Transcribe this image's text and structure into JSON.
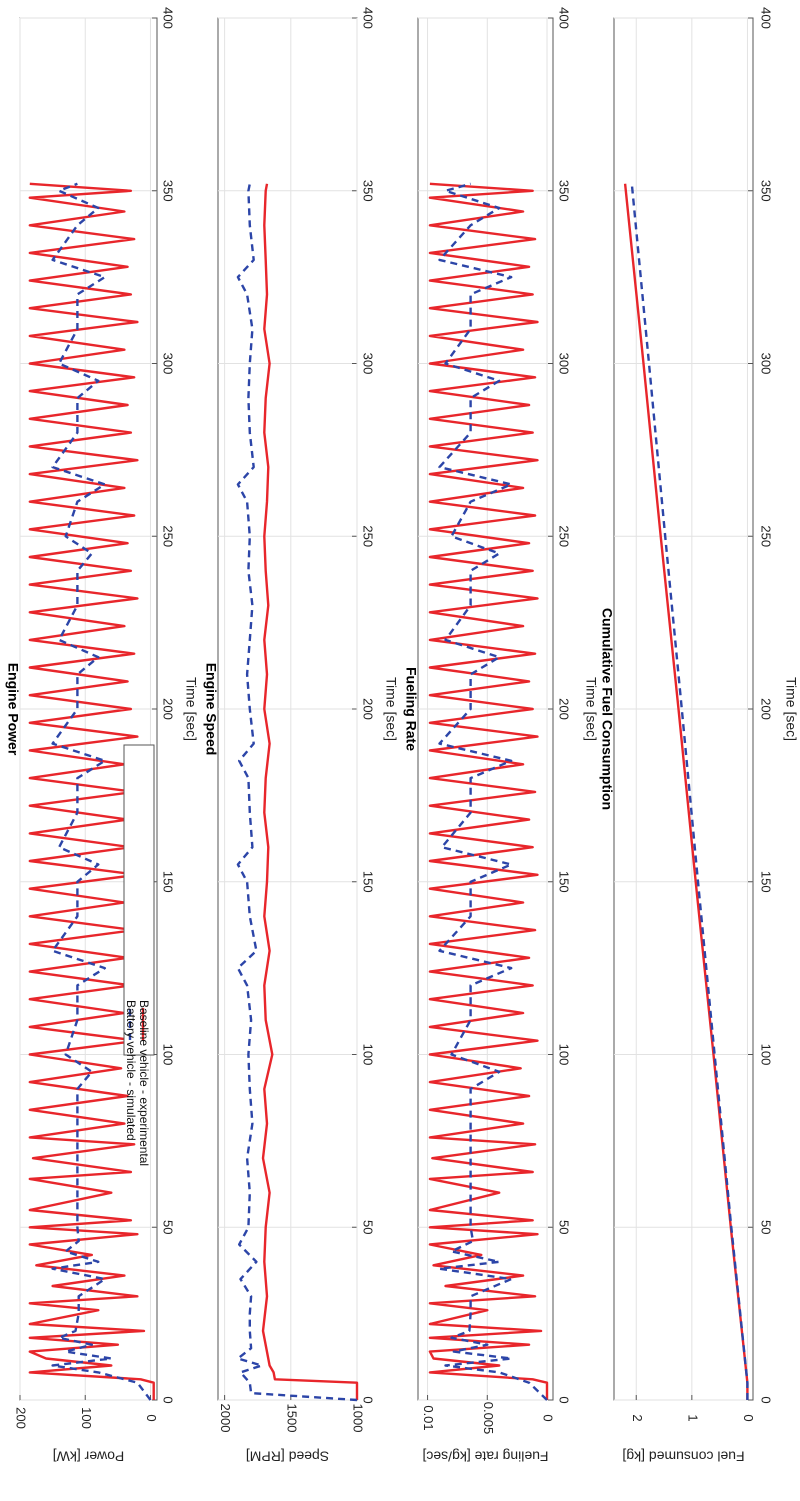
{
  "figure_orientation": "rotated 90 degrees clockwise",
  "colors": {
    "baseline": "#e8262b",
    "battery": "#2c45a8",
    "grid": "#e2e2e2",
    "axis": "#555555"
  },
  "legend": {
    "entries": [
      "Baseline vehicle - experimental",
      "Battery vehicle - simulated"
    ],
    "placement": "top-right"
  },
  "chart_data": [
    {
      "type": "line",
      "title": "Engine Power",
      "xlabel": "Time [sec]",
      "ylabel": "Power [kW]",
      "xlim": [
        0,
        400
      ],
      "ylim": [
        -10,
        200
      ],
      "xticks": [
        "0",
        "50",
        "100",
        "150",
        "200",
        "250",
        "300",
        "350",
        "400"
      ],
      "yticks": [
        "0",
        "100",
        "200"
      ],
      "grid": true,
      "series": [
        {
          "name": "Baseline vehicle - experimental",
          "style": "solid",
          "color": "#e8262b",
          "x": [
            0,
            5,
            6,
            8,
            10,
            12,
            14,
            16,
            18,
            20,
            22,
            26,
            28,
            30,
            33,
            36,
            39,
            42,
            45,
            48,
            50,
            52,
            55,
            60,
            64,
            66,
            70,
            74,
            76,
            80,
            84,
            88,
            92,
            96,
            100,
            104,
            108,
            112,
            116,
            120,
            124,
            128,
            132,
            136,
            140,
            144,
            148,
            152,
            156,
            160,
            164,
            168,
            172,
            176,
            180,
            184,
            188,
            192,
            196,
            200,
            204,
            208,
            212,
            216,
            220,
            224,
            228,
            232,
            236,
            240,
            244,
            248,
            252,
            256,
            260,
            264,
            268,
            272,
            276,
            280,
            284,
            288,
            292,
            296,
            300,
            304,
            308,
            312,
            316,
            320,
            324,
            328,
            332,
            336,
            340,
            344,
            348,
            350,
            352
          ],
          "y": [
            -5,
            -5,
            15,
            185,
            60,
            160,
            185,
            50,
            185,
            10,
            185,
            80,
            185,
            20,
            150,
            40,
            175,
            90,
            185,
            20,
            185,
            30,
            185,
            60,
            185,
            30,
            180,
            25,
            185,
            40,
            185,
            35,
            185,
            45,
            185,
            20,
            185,
            40,
            185,
            30,
            185,
            35,
            185,
            25,
            185,
            40,
            185,
            20,
            185,
            30,
            185,
            35,
            185,
            25,
            185,
            40,
            185,
            20,
            185,
            30,
            185,
            35,
            185,
            25,
            185,
            40,
            185,
            20,
            185,
            30,
            185,
            35,
            185,
            25,
            185,
            40,
            185,
            20,
            185,
            30,
            185,
            35,
            185,
            25,
            185,
            40,
            185,
            20,
            185,
            30,
            185,
            35,
            185,
            25,
            185,
            40,
            185,
            30,
            185
          ]
        },
        {
          "name": "Battery vehicle - simulated",
          "style": "dashed",
          "color": "#2c45a8",
          "x": [
            0,
            5,
            8,
            10,
            12,
            14,
            16,
            18,
            20,
            25,
            30,
            35,
            38,
            40,
            43,
            46,
            50,
            60,
            70,
            80,
            90,
            95,
            100,
            110,
            120,
            125,
            130,
            140,
            150,
            155,
            160,
            170,
            180,
            185,
            190,
            200,
            210,
            215,
            220,
            230,
            240,
            245,
            250,
            260,
            265,
            270,
            280,
            290,
            295,
            300,
            310,
            320,
            325,
            330,
            340,
            345,
            350,
            352
          ],
          "y": [
            0,
            20,
            80,
            150,
            60,
            130,
            90,
            140,
            115,
            110,
            110,
            70,
            150,
            80,
            130,
            110,
            112,
            112,
            112,
            112,
            112,
            90,
            130,
            112,
            112,
            70,
            150,
            112,
            112,
            80,
            140,
            112,
            112,
            70,
            150,
            112,
            112,
            80,
            140,
            112,
            112,
            90,
            130,
            112,
            70,
            150,
            112,
            112,
            80,
            140,
            112,
            112,
            70,
            150,
            112,
            80,
            140,
            112
          ]
        }
      ]
    },
    {
      "type": "line",
      "title": "Engine Speed",
      "xlabel": "Time [sec]",
      "ylabel": "Speed [RPM]",
      "xlim": [
        0,
        400
      ],
      "ylim": [
        1000,
        2050
      ],
      "xticks": [
        "0",
        "50",
        "100",
        "150",
        "200",
        "250",
        "300",
        "350",
        "400"
      ],
      "yticks": [
        "1000",
        "1500",
        "2000"
      ],
      "grid": true,
      "series": [
        {
          "name": "Baseline vehicle - experimental",
          "style": "solid",
          "color": "#e8262b",
          "x": [
            0,
            5,
            6,
            8,
            10,
            20,
            30,
            40,
            50,
            60,
            70,
            80,
            90,
            100,
            110,
            120,
            130,
            140,
            150,
            160,
            170,
            180,
            190,
            200,
            210,
            220,
            230,
            240,
            250,
            260,
            270,
            280,
            290,
            300,
            310,
            320,
            330,
            340,
            350,
            352
          ],
          "y": [
            1000,
            1000,
            1620,
            1630,
            1660,
            1710,
            1680,
            1700,
            1690,
            1660,
            1710,
            1680,
            1700,
            1640,
            1690,
            1700,
            1660,
            1700,
            1680,
            1670,
            1700,
            1690,
            1660,
            1700,
            1680,
            1700,
            1670,
            1690,
            1700,
            1680,
            1670,
            1700,
            1690,
            1660,
            1700,
            1680,
            1690,
            1700,
            1690,
            1680
          ]
        },
        {
          "name": "Battery vehicle - simulated",
          "style": "dashed",
          "color": "#2c45a8",
          "x": [
            0,
            2,
            5,
            8,
            10,
            12,
            15,
            20,
            25,
            30,
            35,
            40,
            45,
            50,
            60,
            70,
            80,
            90,
            100,
            110,
            120,
            125,
            130,
            140,
            150,
            155,
            160,
            170,
            180,
            185,
            190,
            200,
            210,
            220,
            230,
            240,
            250,
            260,
            265,
            270,
            280,
            290,
            300,
            310,
            320,
            325,
            330,
            340,
            350,
            352
          ],
          "y": [
            1000,
            1800,
            1810,
            1880,
            1720,
            1900,
            1800,
            1810,
            1810,
            1800,
            1880,
            1760,
            1890,
            1820,
            1810,
            1830,
            1790,
            1810,
            1820,
            1800,
            1830,
            1900,
            1760,
            1810,
            1830,
            1900,
            1790,
            1810,
            1820,
            1890,
            1780,
            1810,
            1830,
            1810,
            1790,
            1820,
            1810,
            1830,
            1900,
            1780,
            1810,
            1820,
            1810,
            1790,
            1830,
            1900,
            1780,
            1810,
            1820,
            1810
          ]
        }
      ]
    },
    {
      "type": "line",
      "title": "Fueling Rate",
      "xlabel": "Time [sec]",
      "ylabel": "Fueling rate [kg/sec]",
      "xlim": [
        0,
        400
      ],
      "ylim": [
        -0.0005,
        0.0108
      ],
      "xticks": [
        "0",
        "50",
        "100",
        "150",
        "200",
        "250",
        "300",
        "350",
        "400"
      ],
      "yticks": [
        "0",
        "0.005",
        "0.01"
      ],
      "grid": true,
      "series": [
        {
          "name": "Baseline vehicle - experimental",
          "style": "solid",
          "color": "#e8262b",
          "x": [
            0,
            5,
            6,
            8,
            10,
            12,
            14,
            16,
            18,
            20,
            22,
            26,
            28,
            30,
            33,
            36,
            39,
            42,
            45,
            48,
            50,
            52,
            55,
            60,
            64,
            66,
            70,
            74,
            76,
            80,
            84,
            88,
            92,
            96,
            100,
            104,
            108,
            112,
            116,
            120,
            124,
            128,
            132,
            136,
            140,
            144,
            148,
            152,
            156,
            160,
            164,
            168,
            172,
            176,
            180,
            184,
            188,
            192,
            196,
            200,
            204,
            208,
            212,
            216,
            220,
            224,
            228,
            232,
            236,
            240,
            244,
            248,
            252,
            256,
            260,
            264,
            268,
            272,
            276,
            280,
            284,
            288,
            292,
            296,
            300,
            304,
            308,
            312,
            316,
            320,
            324,
            328,
            332,
            336,
            340,
            344,
            348,
            350,
            352
          ],
          "y": [
            0,
            0,
            0.0012,
            0.0098,
            0.004,
            0.0095,
            0.0098,
            0.0015,
            0.0098,
            0.0005,
            0.0098,
            0.005,
            0.0098,
            0.001,
            0.0085,
            0.002,
            0.0095,
            0.0055,
            0.0098,
            0.0008,
            0.0098,
            0.0012,
            0.0098,
            0.004,
            0.0098,
            0.0012,
            0.0096,
            0.001,
            0.0098,
            0.002,
            0.0098,
            0.0015,
            0.0098,
            0.0022,
            0.0098,
            0.0008,
            0.0098,
            0.002,
            0.0098,
            0.0012,
            0.0098,
            0.0015,
            0.0098,
            0.001,
            0.0098,
            0.002,
            0.0098,
            0.0008,
            0.0098,
            0.0012,
            0.0098,
            0.0015,
            0.0098,
            0.001,
            0.0098,
            0.002,
            0.0098,
            0.0008,
            0.0098,
            0.0012,
            0.0098,
            0.0015,
            0.0098,
            0.001,
            0.0098,
            0.002,
            0.0098,
            0.0008,
            0.0098,
            0.0012,
            0.0098,
            0.0015,
            0.0098,
            0.001,
            0.0098,
            0.002,
            0.0098,
            0.0008,
            0.0098,
            0.0012,
            0.0098,
            0.0015,
            0.0098,
            0.001,
            0.0098,
            0.002,
            0.0098,
            0.0008,
            0.0098,
            0.0012,
            0.0098,
            0.0015,
            0.0098,
            0.001,
            0.0098,
            0.002,
            0.0098,
            0.0012,
            0.0098
          ]
        },
        {
          "name": "Battery vehicle - simulated",
          "style": "dashed",
          "color": "#2c45a8",
          "x": [
            0,
            5,
            8,
            10,
            12,
            14,
            16,
            18,
            20,
            25,
            30,
            35,
            38,
            40,
            43,
            46,
            50,
            60,
            70,
            80,
            90,
            95,
            100,
            110,
            120,
            125,
            130,
            140,
            150,
            155,
            160,
            170,
            180,
            185,
            190,
            200,
            210,
            215,
            220,
            230,
            240,
            245,
            250,
            260,
            265,
            270,
            280,
            290,
            295,
            300,
            310,
            320,
            325,
            330,
            340,
            345,
            350,
            352
          ],
          "y": [
            0,
            0.0015,
            0.004,
            0.0085,
            0.003,
            0.0078,
            0.005,
            0.008,
            0.0065,
            0.0064,
            0.0064,
            0.003,
            0.009,
            0.004,
            0.008,
            0.0062,
            0.0064,
            0.0064,
            0.0064,
            0.0064,
            0.0064,
            0.004,
            0.008,
            0.0064,
            0.0064,
            0.003,
            0.009,
            0.0064,
            0.0064,
            0.003,
            0.0088,
            0.0064,
            0.0064,
            0.003,
            0.009,
            0.0064,
            0.0064,
            0.004,
            0.0085,
            0.0064,
            0.0064,
            0.004,
            0.008,
            0.0064,
            0.003,
            0.009,
            0.0064,
            0.0064,
            0.004,
            0.0085,
            0.0064,
            0.0064,
            0.003,
            0.009,
            0.0064,
            0.004,
            0.0085,
            0.0064
          ]
        }
      ]
    },
    {
      "type": "line",
      "title": "Cumulative Fuel Consumption",
      "xlabel": "Time [sec]",
      "ylabel": "Fuel consumed [kg]",
      "xlim": [
        0,
        400
      ],
      "ylim": [
        -0.1,
        2.4
      ],
      "xticks": [
        "0",
        "50",
        "100",
        "150",
        "200",
        "250",
        "300",
        "350",
        "400"
      ],
      "yticks": [
        "0",
        "1",
        "2"
      ],
      "grid": true,
      "series": [
        {
          "name": "Baseline vehicle - experimental",
          "style": "solid",
          "color": "#e8262b",
          "x": [
            0,
            5,
            50,
            100,
            150,
            200,
            250,
            300,
            352
          ],
          "y": [
            0,
            0,
            0.3,
            0.61,
            0.93,
            1.24,
            1.56,
            1.87,
            2.2
          ]
        },
        {
          "name": "Battery vehicle - simulated",
          "style": "dashed",
          "color": "#2c45a8",
          "x": [
            0,
            5,
            50,
            100,
            150,
            200,
            250,
            300,
            352
          ],
          "y": [
            0,
            0,
            0.29,
            0.59,
            0.89,
            1.18,
            1.48,
            1.77,
            2.08
          ]
        }
      ]
    }
  ]
}
